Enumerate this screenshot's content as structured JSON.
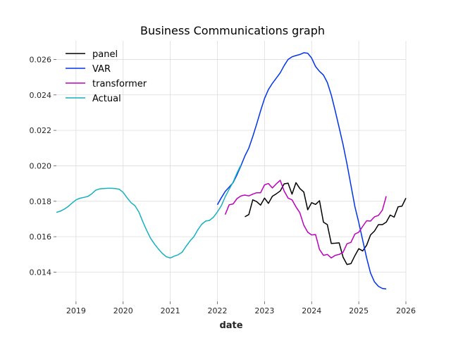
{
  "chart_data": {
    "type": "line",
    "title": "Business Communications graph",
    "xlabel": "date",
    "ylabel": "",
    "xlim": [
      "2018-08-01",
      "2026-01-01"
    ],
    "ylim": [
      0.01235,
      0.02705
    ],
    "x_ticks": [
      "2019",
      "2020",
      "2021",
      "2022",
      "2023",
      "2024",
      "2025",
      "2026"
    ],
    "y_ticks": [
      "0.014",
      "0.016",
      "0.018",
      "0.020",
      "0.022",
      "0.024",
      "0.026"
    ],
    "grid": true,
    "legend_position": "top-left",
    "series": [
      {
        "name": "panel",
        "color": "#000000",
        "x": [
          "2022-08",
          "2022-09",
          "2022-10",
          "2022-11",
          "2022-12",
          "2023-01",
          "2023-02",
          "2023-03",
          "2023-04",
          "2023-05",
          "2023-06",
          "2023-07",
          "2023-08",
          "2023-09",
          "2023-10",
          "2023-11",
          "2023-12",
          "2024-01",
          "2024-02",
          "2024-03",
          "2024-04",
          "2024-05",
          "2024-06",
          "2024-07",
          "2024-08",
          "2024-09",
          "2024-10",
          "2024-11",
          "2024-12",
          "2025-01",
          "2025-02",
          "2025-03",
          "2025-04",
          "2025-05",
          "2025-06",
          "2025-07",
          "2025-08",
          "2025-09",
          "2025-10",
          "2025-11",
          "2025-12",
          "2026-01"
        ],
        "values": [
          0.01712,
          0.01725,
          0.01808,
          0.01798,
          0.01778,
          0.01818,
          0.01788,
          0.01828,
          0.01842,
          0.01858,
          0.01898,
          0.01902,
          0.0184,
          0.01905,
          0.01872,
          0.01852,
          0.01752,
          0.01792,
          0.01782,
          0.01803,
          0.01682,
          0.01668,
          0.01562,
          0.01563,
          0.01565,
          0.01485,
          0.01443,
          0.01448,
          0.01493,
          0.01532,
          0.0152,
          0.01552,
          0.0161,
          0.01632,
          0.01668,
          0.01668,
          0.01682,
          0.01722,
          0.0171,
          0.01768,
          0.01772,
          0.01818
        ]
      },
      {
        "name": "VAR",
        "color": "#0033ee",
        "x": [
          "2022-01",
          "2022-02",
          "2022-03",
          "2022-04",
          "2022-05",
          "2022-06",
          "2022-07",
          "2022-08",
          "2022-09",
          "2022-10",
          "2022-11",
          "2022-12",
          "2023-01",
          "2023-02",
          "2023-03",
          "2023-04",
          "2023-05",
          "2023-06",
          "2023-07",
          "2023-08",
          "2023-09",
          "2023-10",
          "2023-11",
          "2023-12",
          "2024-01",
          "2024-02",
          "2024-03",
          "2024-04",
          "2024-05",
          "2024-06",
          "2024-07",
          "2024-08",
          "2024-09",
          "2024-10",
          "2024-11",
          "2024-12",
          "2025-01",
          "2025-02",
          "2025-03",
          "2025-04",
          "2025-05",
          "2025-06",
          "2025-07",
          "2025-08"
        ],
        "values": [
          0.0178,
          0.0182,
          0.01855,
          0.0188,
          0.01905,
          0.0195,
          0.02,
          0.02055,
          0.021,
          0.02165,
          0.02235,
          0.0231,
          0.0238,
          0.0243,
          0.02465,
          0.02495,
          0.02525,
          0.02565,
          0.026,
          0.02615,
          0.02622,
          0.02628,
          0.02638,
          0.02635,
          0.02608,
          0.0256,
          0.02533,
          0.02512,
          0.0247,
          0.024,
          0.0231,
          0.02215,
          0.0212,
          0.0201,
          0.0189,
          0.0177,
          0.0168,
          0.0158,
          0.0148,
          0.01395,
          0.01345,
          0.0132,
          0.01308,
          0.01305
        ]
      },
      {
        "name": "transformer",
        "color": "#bb00bb",
        "x": [
          "2022-03",
          "2022-04",
          "2022-05",
          "2022-06",
          "2022-07",
          "2022-08",
          "2022-09",
          "2022-10",
          "2022-11",
          "2022-12",
          "2023-01",
          "2023-02",
          "2023-03",
          "2023-04",
          "2023-05",
          "2023-06",
          "2023-07",
          "2023-08",
          "2023-09",
          "2023-10",
          "2023-11",
          "2023-12",
          "2024-01",
          "2024-02",
          "2024-03",
          "2024-04",
          "2024-05",
          "2024-06",
          "2024-07",
          "2024-08",
          "2024-09",
          "2024-10",
          "2024-11",
          "2024-12",
          "2025-01",
          "2025-02",
          "2025-03",
          "2025-04",
          "2025-05",
          "2025-06",
          "2025-07",
          "2025-08"
        ],
        "values": [
          0.01725,
          0.0178,
          0.01785,
          0.01815,
          0.0183,
          0.01835,
          0.0183,
          0.0184,
          0.01848,
          0.01848,
          0.01892,
          0.019,
          0.01875,
          0.01898,
          0.01918,
          0.01858,
          0.01818,
          0.01808,
          0.01768,
          0.01735,
          0.01665,
          0.01625,
          0.0161,
          0.01612,
          0.01528,
          0.01495,
          0.015,
          0.0148,
          0.01495,
          0.015,
          0.01512,
          0.0156,
          0.01568,
          0.01615,
          0.01625,
          0.01658,
          0.0169,
          0.01688,
          0.01712,
          0.0172,
          0.0175,
          0.01828
        ]
      },
      {
        "name": "Actual",
        "color": "#17b0c0",
        "x": [
          "2018-08",
          "2018-09",
          "2018-10",
          "2018-11",
          "2018-12",
          "2019-01",
          "2019-02",
          "2019-03",
          "2019-04",
          "2019-05",
          "2019-06",
          "2019-07",
          "2019-08",
          "2019-09",
          "2019-10",
          "2019-11",
          "2019-12",
          "2020-01",
          "2020-02",
          "2020-03",
          "2020-04",
          "2020-05",
          "2020-06",
          "2020-07",
          "2020-08",
          "2020-09",
          "2020-10",
          "2020-11",
          "2020-12",
          "2021-01",
          "2021-02",
          "2021-03",
          "2021-04",
          "2021-05",
          "2021-06",
          "2021-07",
          "2021-08",
          "2021-09",
          "2021-10",
          "2021-11",
          "2021-12",
          "2022-01",
          "2022-02",
          "2022-03",
          "2022-04",
          "2022-05",
          "2022-06",
          "2022-07"
        ],
        "values": [
          0.01737,
          0.01744,
          0.01755,
          0.0177,
          0.0179,
          0.01808,
          0.01817,
          0.01822,
          0.01827,
          0.01842,
          0.01862,
          0.0187,
          0.01872,
          0.01873,
          0.01873,
          0.01872,
          0.01868,
          0.0185,
          0.0182,
          0.01792,
          0.01775,
          0.0174,
          0.01685,
          0.01635,
          0.0159,
          0.01558,
          0.0153,
          0.01505,
          0.01487,
          0.0148,
          0.0149,
          0.01498,
          0.01512,
          0.01545,
          0.01575,
          0.016,
          0.01638,
          0.0167,
          0.01688,
          0.01692,
          0.0171,
          0.0174,
          0.01775,
          0.01825,
          0.01868,
          0.01908,
          0.0196,
          0.02005
        ]
      }
    ]
  }
}
